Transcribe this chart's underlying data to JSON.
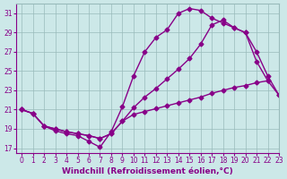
{
  "background_color": "#cce8e8",
  "grid_color": "#99bbbb",
  "line_color": "#880088",
  "xlim": [
    -0.5,
    23
  ],
  "ylim": [
    16.5,
    32
  ],
  "yticks": [
    17,
    19,
    21,
    23,
    25,
    27,
    29,
    31
  ],
  "xticks": [
    0,
    1,
    2,
    3,
    4,
    5,
    6,
    7,
    8,
    9,
    10,
    11,
    12,
    13,
    14,
    15,
    16,
    17,
    18,
    19,
    20,
    21,
    22,
    23
  ],
  "xlabel": "Windchill (Refroidissement éolien,°C)",
  "line1_x": [
    0,
    1,
    2,
    3,
    4,
    5,
    6,
    7,
    8,
    9,
    10,
    11,
    12,
    13,
    14,
    15,
    16,
    17,
    18,
    19,
    20,
    21,
    22
  ],
  "line1_y": [
    21.0,
    20.6,
    19.3,
    18.8,
    18.5,
    18.3,
    17.7,
    17.1,
    18.7,
    21.3,
    24.5,
    27.0,
    28.5,
    29.3,
    31.0,
    31.5,
    31.3,
    30.5,
    30.0,
    29.5,
    29.0,
    26.0,
    24.0
  ],
  "line2_x": [
    0,
    1,
    2,
    3,
    4,
    5,
    6,
    7,
    8,
    9,
    10,
    11,
    12,
    13,
    14,
    15,
    16,
    17,
    18,
    19,
    20,
    21,
    22,
    23
  ],
  "line2_y": [
    21.0,
    20.6,
    19.3,
    19.0,
    18.7,
    18.5,
    18.3,
    18.0,
    18.5,
    19.8,
    21.2,
    22.3,
    23.2,
    24.2,
    25.2,
    26.3,
    27.8,
    29.8,
    30.3,
    29.5,
    29.0,
    27.0,
    24.5,
    22.5
  ],
  "line3_x": [
    0,
    1,
    2,
    3,
    4,
    5,
    6,
    7,
    8,
    9,
    10,
    11,
    12,
    13,
    14,
    15,
    16,
    17,
    18,
    19,
    20,
    21,
    22,
    23
  ],
  "line3_y": [
    21.0,
    20.6,
    19.3,
    19.0,
    18.7,
    18.5,
    18.3,
    18.0,
    18.5,
    19.8,
    20.5,
    20.8,
    21.1,
    21.4,
    21.7,
    22.0,
    22.3,
    22.7,
    23.0,
    23.3,
    23.5,
    23.8,
    24.0,
    22.5
  ],
  "marker": "D",
  "marker_size": 2.5,
  "linewidth": 1.0,
  "tick_fontsize": 5.5,
  "label_fontsize": 6.5
}
